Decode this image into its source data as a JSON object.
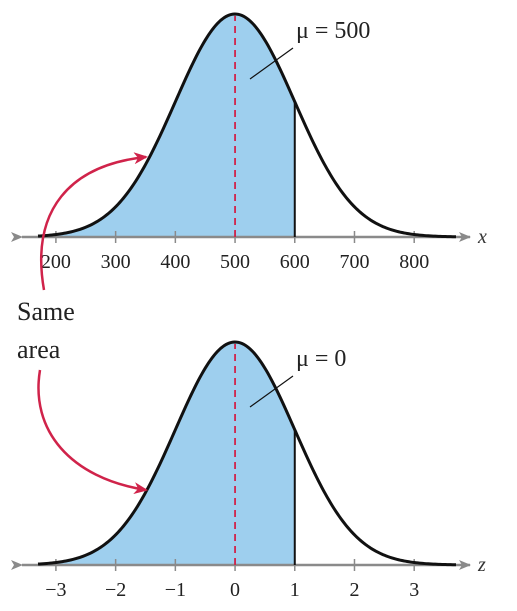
{
  "chart_data": [
    {
      "type": "area",
      "curve": "normal",
      "variable": "x",
      "mean": 500,
      "std_dev": 100,
      "mean_label": "μ = 500",
      "shaded_from": "-inf",
      "shaded_to": 600,
      "xlim": [
        170,
        870
      ],
      "ticks": [
        200,
        300,
        400,
        500,
        600,
        700,
        800
      ],
      "tick_labels": [
        "200",
        "300",
        "400",
        "500",
        "600",
        "700",
        "800"
      ],
      "colors": {
        "fill": "#9ecfee",
        "curve": "#111111",
        "mean_line": "#d0234a"
      }
    },
    {
      "type": "area",
      "curve": "normal",
      "variable": "z",
      "mean": 0,
      "std_dev": 1,
      "mean_label": "μ = 0",
      "shaded_from": "-inf",
      "shaded_to": 1,
      "xlim": [
        -3.3,
        3.7
      ],
      "ticks": [
        -3,
        -2,
        -1,
        0,
        1,
        2,
        3
      ],
      "tick_labels": [
        "−3",
        "−2",
        "−1",
        "0",
        "1",
        "2",
        "3"
      ],
      "colors": {
        "fill": "#9ecfee",
        "curve": "#111111",
        "mean_line": "#d0234a"
      }
    }
  ],
  "annotation": {
    "line1": "Same",
    "line2": "area",
    "arrow_color": "#d0234a"
  }
}
